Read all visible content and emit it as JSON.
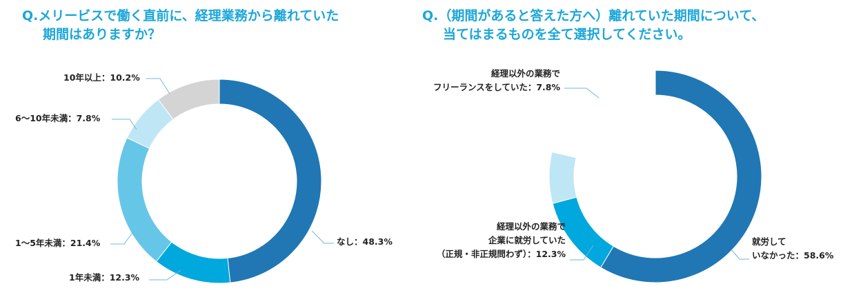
{
  "questions": {
    "q1": {
      "line1": "Q.メリービスで働く直前に、経理業務から離れていた",
      "line2": "期間はありますか？"
    },
    "q2": {
      "line1": "Q.（期間があると答えた方へ）離れていた期間について、",
      "line2": "当てはまるものを全て選択してください。"
    }
  },
  "chart_data": [
    {
      "type": "pie",
      "donut": true,
      "categories": [
        "なし",
        "1年未満",
        "1～5年未満",
        "6～10年未満",
        "10年以上"
      ],
      "values": [
        48.3,
        12.3,
        21.4,
        7.8,
        10.2
      ],
      "unit": "%",
      "colors": [
        "#2077b4",
        "#00a8dd",
        "#66c6e8",
        "#bfe6f5",
        "#d4d4d4"
      ],
      "labels": [
        [
          "なし：48.3%"
        ],
        [
          "1年未満：12.3%"
        ],
        [
          "1～5年未満：21.4%"
        ],
        [
          "6～10年未満：7.8%"
        ],
        [
          "10年以上：10.2%"
        ]
      ]
    },
    {
      "type": "pie",
      "donut": true,
      "categories": [
        "就労していなかった",
        "経理以外の業務で企業に就労していた（正規・非正規問わず）",
        "経理以外の業務でフリーランスをしていた"
      ],
      "values": [
        58.6,
        12.3,
        7.8
      ],
      "unit": "%",
      "colors": [
        "#2077b4",
        "#00a8dd",
        "#bfe6f5"
      ],
      "labels": [
        [
          "就労して",
          "いなかった：58.6%"
        ],
        [
          "経理以外の業務で",
          "企業に就労していた",
          "（正規・非正規問わず）：12.3%"
        ],
        [
          "経理以外の業務で",
          "フリーランスをしていた：7.8%"
        ]
      ]
    }
  ]
}
